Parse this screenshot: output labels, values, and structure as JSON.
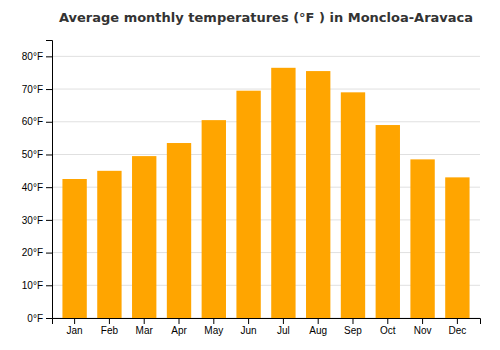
{
  "chart_data": {
    "type": "bar",
    "title": "Average monthly temperatures (°F ) in Moncloa-Aravaca",
    "categories": [
      "Jan",
      "Feb",
      "Mar",
      "Apr",
      "May",
      "Jun",
      "Jul",
      "Aug",
      "Sep",
      "Oct",
      "Nov",
      "Dec"
    ],
    "values": [
      42.5,
      45.0,
      49.5,
      53.5,
      60.5,
      69.5,
      76.5,
      75.5,
      69.0,
      59.0,
      48.5,
      43.0
    ],
    "color": "#FFA500",
    "ylim": [
      0,
      85
    ],
    "yticks": [
      {
        "value": 0,
        "label": "0°F"
      },
      {
        "value": 10,
        "label": "10°F"
      },
      {
        "value": 20,
        "label": "20°F"
      },
      {
        "value": 30,
        "label": "30°F"
      },
      {
        "value": 40,
        "label": "40°F"
      },
      {
        "value": 50,
        "label": "50°F"
      },
      {
        "value": 60,
        "label": "60°F"
      },
      {
        "value": 70,
        "label": "70°F"
      },
      {
        "value": 80,
        "label": "80°F"
      }
    ],
    "grid": true
  }
}
